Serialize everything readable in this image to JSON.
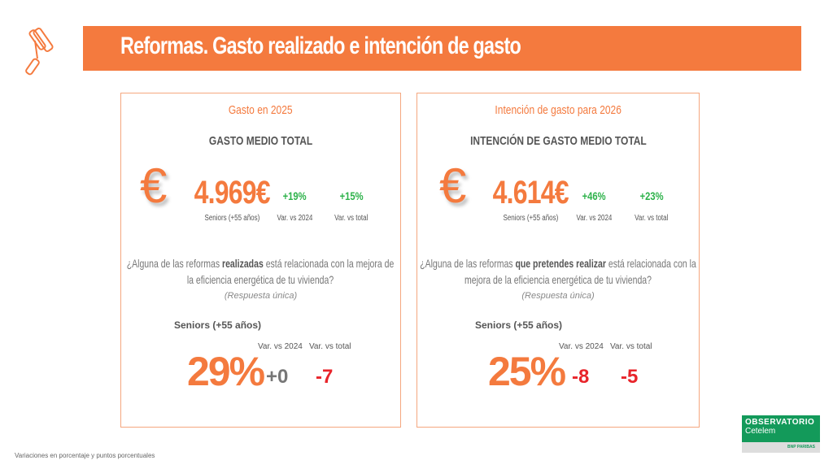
{
  "header": {
    "title": "Reformas. Gasto realizado e intención de gasto",
    "icon": "paint-roller-icon"
  },
  "left": {
    "subtitle": "Gasto en 2025",
    "heading": "GASTO MEDIO TOTAL",
    "amount": "4.969€",
    "amount_label": "Seniors (+55 años)",
    "var2024": "+19%",
    "var2024_label": "Var. vs 2024",
    "vartotal": "+15%",
    "vartotal_label": "Var. vs total",
    "question_pre": "¿Alguna de las reformas ",
    "question_bold": "realizadas",
    "question_post": " está relacionada con la mejora de la eficiencia energética de tu vivienda?",
    "note": "(Respuesta única)",
    "segment": "Seniors (+55 años)",
    "pct": "29%",
    "pct_var2024_label": "Var. vs 2024",
    "pct_var2024": "+0",
    "pct_vartotal_label": "Var. vs total",
    "pct_vartotal": "-7"
  },
  "right": {
    "subtitle": "Intención de gasto para 2026",
    "heading": "INTENCIÓN DE GASTO MEDIO TOTAL",
    "amount": "4.614€",
    "amount_label": "Seniors (+55 años)",
    "var2024": "+46%",
    "var2024_label": "Var. vs 2024",
    "vartotal": "+23%",
    "vartotal_label": "Var. vs total",
    "question_pre": "¿Alguna de las reformas ",
    "question_bold": "que pretendes realizar",
    "question_post": " está relacionada con la mejora de la eficiencia energética de tu vivienda?",
    "note": "(Respuesta única)",
    "segment": "Seniors (+55 años)",
    "pct": "25%",
    "pct_var2024_label": "Var. vs 2024",
    "pct_var2024": "-8",
    "pct_vartotal_label": "Var. vs total",
    "pct_vartotal": "-5"
  },
  "footer": {
    "note": "Variaciones en porcentaje y puntos porcentuales"
  },
  "logo": {
    "line1": "OBSERVATORIO",
    "line2": "Cetelem",
    "sub": "BNP PARIBAS"
  },
  "colors": {
    "accent": "#f47a3e",
    "green": "#2db24a",
    "red": "#e8242a",
    "logo": "#139a5a"
  }
}
